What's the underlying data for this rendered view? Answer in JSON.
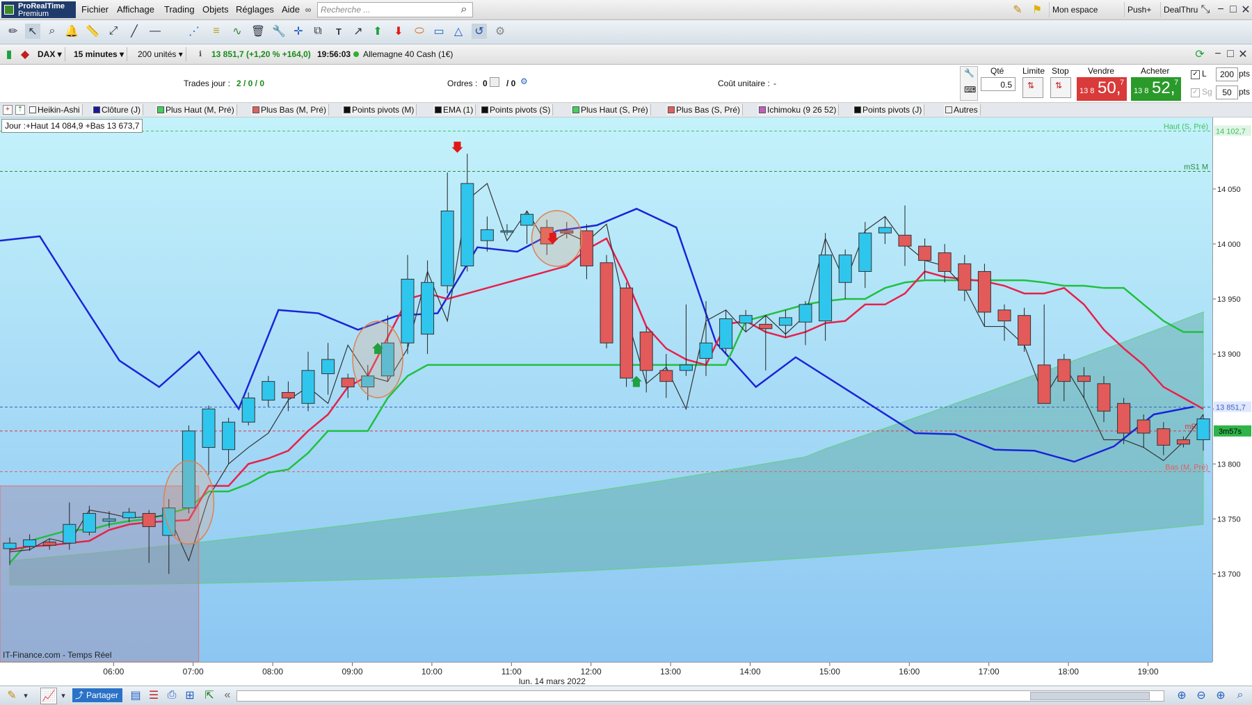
{
  "app": {
    "logo_line1": "ProRealTime",
    "logo_line2": "Premium"
  },
  "menu": [
    "Fichier",
    "Affichage",
    "Trading",
    "Objets",
    "Réglages",
    "Aide"
  ],
  "search": {
    "placeholder": "Recherche ..."
  },
  "right_buttons": {
    "space": "Mon espace",
    "push": "Push+",
    "dealthru": "DealThru"
  },
  "instrument": {
    "symbol": "DAX",
    "timeframe": "15 minutes",
    "units": "200 unités",
    "quote": "13 851,7 (+1,20 % +164,0)",
    "time": "19:56:03",
    "name": "Allemagne 40 Cash (1€)"
  },
  "trading_panel": {
    "trades_label": "Trades jour :",
    "trades_value": "2 / 0 / 0",
    "orders_label": "Ordres :",
    "orders_a": "0",
    "orders_b": "/ 0",
    "cost_label": "Coût unitaire :",
    "cost_value": "-",
    "qty_label": "Qté",
    "qty_value": "0.5",
    "limit_label": "Limite",
    "stop_label": "Stop",
    "sell_label": "Vendre",
    "buy_label": "Acheter",
    "sell_small": "13 8",
    "sell_big": "50,",
    "sell_sup": "7",
    "buy_small": "13 8",
    "buy_big": "52,",
    "buy_sup": "7",
    "l_label": "L",
    "sg_label": "Sg",
    "pts1": "200",
    "pts2": "50",
    "pts_unit": "pts"
  },
  "indicators": [
    "Heikin-Ashi",
    "Clôture (J)",
    "Plus Haut (M, Pré)",
    "Plus Bas (M, Pré)",
    "Points pivots (M)",
    "EMA (1)",
    "Points pivots (S)",
    "Plus Haut (S, Pré)",
    "Plus Bas (S, Pré)",
    "Ichimoku (9 26 52)",
    "Points pivots (J)",
    "Autres"
  ],
  "indicator_colors": [
    "#ffffff",
    "#1a1aa0",
    "#40d060",
    "#e06060",
    "#101010",
    "#101010",
    "#101010",
    "#40d060",
    "#e06060",
    "#c060c0",
    "#101010",
    "#f0f0f0"
  ],
  "chart_data": {
    "type": "candlestick",
    "day_label": "Jour :+Haut 14 084,9 +Bas 13 673,7",
    "source": "IT-Finance.com - Temps Réel",
    "date_label": "lun. 14 mars 2022",
    "y_ticks": [
      "14 050",
      "14 000",
      "13 950",
      "13 900",
      "13 850",
      "13 800",
      "13 750",
      "13 700"
    ],
    "y_values": [
      14050,
      14000,
      13950,
      13900,
      13850,
      13800,
      13750,
      13700
    ],
    "x_ticks": [
      "06:00",
      "07:00",
      "08:00",
      "09:00",
      "10:00",
      "11:00",
      "12:00",
      "13:00",
      "14:00",
      "15:00",
      "16:00",
      "17:00",
      "18:00",
      "19:00"
    ],
    "ylim": [
      13620,
      14115
    ],
    "levels": [
      {
        "label": "Haut (S, Pré)",
        "value": 14102.7,
        "color": "#40c060",
        "price_label": "14 102,7"
      },
      {
        "label": "mS1 M",
        "value": 14066,
        "color": "#2a8a3a"
      },
      {
        "label": "",
        "value": 13851.7,
        "color": "#4060c0",
        "price_label": "13 851,7"
      },
      {
        "label": "mR1 S",
        "value": 13830,
        "color": "#e03040"
      },
      {
        "label": "Bas (M, Pré)",
        "value": 13793,
        "color": "#e06060"
      }
    ],
    "countdown": "3m57s",
    "candles": [
      [
        13723,
        13728,
        13708,
        13733
      ],
      [
        13725,
        13731,
        13721,
        13736
      ],
      [
        13729,
        13726,
        13722,
        13732
      ],
      [
        13728,
        13745,
        13722,
        13765
      ],
      [
        13738,
        13755,
        13735,
        13762
      ],
      [
        13748,
        13750,
        13742,
        13757
      ],
      [
        13751,
        13756,
        13747,
        13760
      ],
      [
        13755,
        13743,
        13710,
        13758
      ],
      [
        13735,
        13760,
        13700,
        13768
      ],
      [
        13760,
        13830,
        13755,
        13835
      ],
      [
        13815,
        13850,
        13790,
        13853
      ],
      [
        13813,
        13838,
        13800,
        13842
      ],
      [
        13838,
        13860,
        13835,
        13865
      ],
      [
        13858,
        13875,
        13852,
        13880
      ],
      [
        13865,
        13860,
        13848,
        13875
      ],
      [
        13855,
        13885,
        13848,
        13902
      ],
      [
        13882,
        13895,
        13863,
        13910
      ],
      [
        13878,
        13870,
        13860,
        13882
      ],
      [
        13870,
        13880,
        13858,
        13890
      ],
      [
        13880,
        13910,
        13875,
        13935
      ],
      [
        13910,
        13968,
        13900,
        13990
      ],
      [
        13918,
        13965,
        13900,
        13985
      ],
      [
        13962,
        14030,
        13955,
        14065
      ],
      [
        13980,
        14055,
        13975,
        14082
      ],
      [
        14003,
        14013,
        13993,
        14025
      ],
      [
        14012,
        14012,
        14008,
        14018
      ],
      [
        14017,
        14027,
        14000,
        14030
      ],
      [
        14015,
        14000,
        13990,
        14022
      ],
      [
        14012,
        14010,
        14005,
        14020
      ],
      [
        14012,
        13980,
        13968,
        14018
      ],
      [
        13983,
        13910,
        13905,
        13990
      ],
      [
        13960,
        13878,
        13870,
        13965
      ],
      [
        13920,
        13885,
        13865,
        13925
      ],
      [
        13885,
        13875,
        13860,
        13900
      ],
      [
        13885,
        13890,
        13880,
        13945
      ],
      [
        13896,
        13910,
        13880,
        13948
      ],
      [
        13905,
        13932,
        13900,
        13940
      ],
      [
        13928,
        13935,
        13920,
        13940
      ],
      [
        13927,
        13923,
        13885,
        13935
      ],
      [
        13926,
        13933,
        13915,
        13940
      ],
      [
        13929,
        13945,
        13908,
        13948
      ],
      [
        13930,
        13990,
        13912,
        14010
      ],
      [
        13965,
        13990,
        13950,
        13995
      ],
      [
        13975,
        14010,
        13960,
        14020
      ],
      [
        14010,
        14015,
        14000,
        14025
      ],
      [
        14008,
        13998,
        13980,
        14035
      ],
      [
        13998,
        13985,
        13968,
        14005
      ],
      [
        13992,
        13975,
        13965,
        14000
      ],
      [
        13982,
        13958,
        13948,
        13990
      ],
      [
        13975,
        13938,
        13925,
        13982
      ],
      [
        13940,
        13930,
        13912,
        13945
      ],
      [
        13935,
        13908,
        13902,
        13942
      ],
      [
        13890,
        13855,
        13858,
        13945
      ],
      [
        13895,
        13875,
        13857,
        13900
      ],
      [
        13880,
        13875,
        13860,
        13888
      ],
      [
        13873,
        13848,
        13838,
        13880
      ],
      [
        13855,
        13828,
        13818,
        13860
      ],
      [
        13840,
        13828,
        13815,
        13845
      ],
      [
        13832,
        13817,
        13808,
        13838
      ],
      [
        13822,
        13818,
        13815,
        13825
      ],
      [
        13822,
        13841,
        13812,
        13845
      ]
    ],
    "ha_lines": [
      [
        13720,
        13722,
        13732,
        13728,
        13758,
        13755,
        13751,
        13752,
        13753,
        13712,
        13770,
        13800,
        13815,
        13828,
        13858,
        13870,
        13855,
        13908,
        13880,
        13875,
        13905,
        13975,
        13930,
        14040,
        14055,
        14003,
        14030,
        14000,
        14010,
        14002,
        14018,
        13935,
        13873,
        13888,
        13850,
        13930,
        13940,
        13920,
        13935,
        13918,
        13935,
        14005,
        13965,
        14012,
        14025,
        14000,
        13985,
        13980,
        13960,
        13925,
        13925,
        13908,
        13860,
        13890,
        13860,
        13822,
        13822,
        13815,
        13803,
        13820,
        13845
      ]
    ],
    "close_daily": [
      14003,
      14007,
      13950,
      13894,
      13870,
      13902,
      13850,
      13940,
      13937,
      13922,
      13935,
      13937,
      13997,
      13993,
      14012,
      14017,
      14032,
      14015,
      13910,
      13870,
      13897,
      13874,
      13851,
      13828,
      13827,
      13813,
      13812,
      13802,
      13816,
      13845,
      13852
    ],
    "ema_series": [
      13722,
      13725,
      13726,
      13728,
      13730,
      13740,
      13745,
      13747,
      13748,
      13749,
      13780,
      13780,
      13800,
      13805,
      13812,
      13830,
      13845,
      13870,
      13880,
      13915,
      13950,
      13955,
      13950,
      13955,
      13960,
      13965,
      13970,
      13975,
      13980,
      13995,
      14005,
      13968,
      13925,
      13905,
      13895,
      13890,
      13927,
      13930,
      13920,
      13915,
      13920,
      13928,
      13930,
      13945,
      13945,
      13955,
      13975,
      13970,
      13968,
      13966,
      13962,
      13955,
      13955,
      13960,
      13945,
      13922,
      13905,
      13890,
      13870,
      13860,
      13850
    ],
    "tenkan_series": [
      13710,
      13730,
      13735,
      13740,
      13740,
      13745,
      13748,
      13750,
      13755,
      13760,
      13775,
      13775,
      13782,
      13792,
      13795,
      13810,
      13830,
      13830,
      13830,
      13860,
      13880,
      13890,
      13890,
      13890,
      13890,
      13890,
      13890,
      13890,
      13890,
      13890,
      13890,
      13890,
      13890,
      13890,
      13890,
      13890,
      13890,
      13930,
      13935,
      13940,
      13945,
      13948,
      13950,
      13950,
      13960,
      13965,
      13967,
      13967,
      13967,
      13967,
      13967,
      13967,
      13965,
      13962,
      13962,
      13960,
      13960,
      13945,
      13930,
      13920,
      13920
    ]
  }
}
